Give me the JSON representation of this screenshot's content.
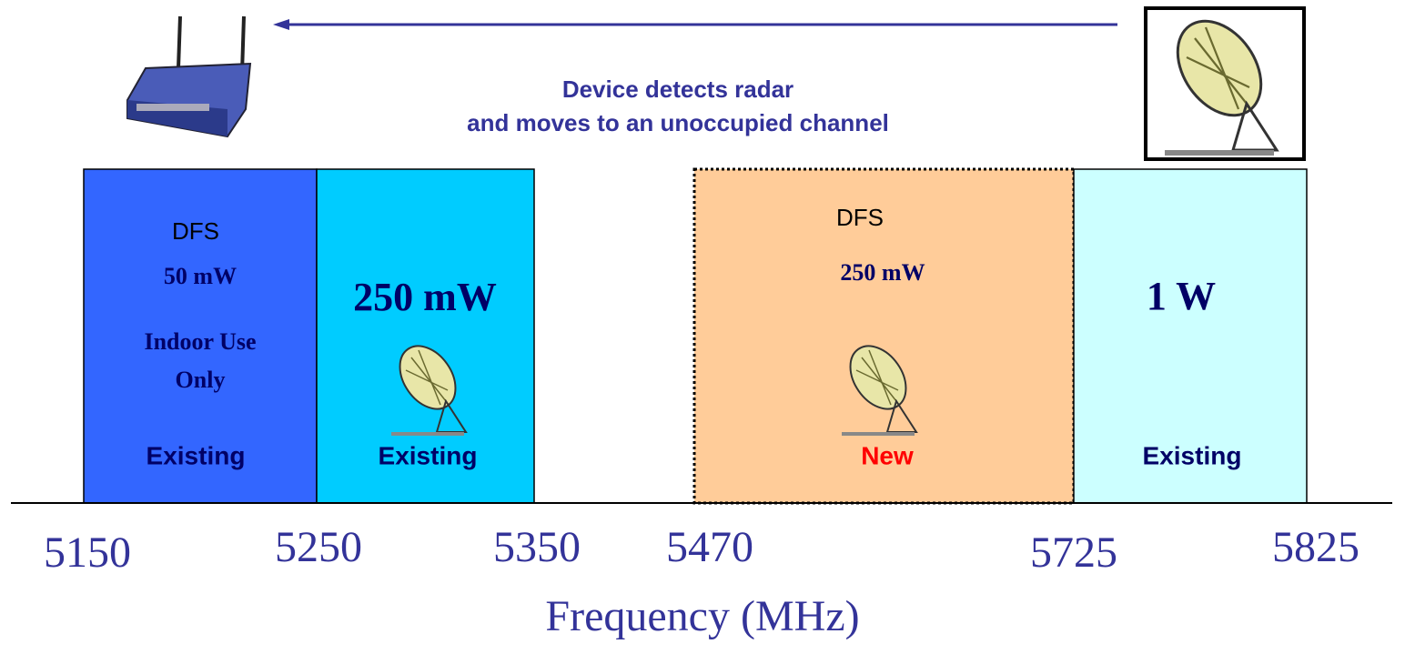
{
  "annotation": {
    "lines": [
      "Device detects radar",
      "and moves to an unoccupied channel"
    ]
  },
  "bands": [
    {
      "label": "DFS",
      "power": "50 mW",
      "note": [
        "Indoor Use",
        "Only"
      ],
      "status": "Existing"
    },
    {
      "power": "250 mW",
      "status": "Existing"
    },
    {
      "label": "DFS",
      "power": "250 mW",
      "status": "New"
    },
    {
      "power": "1 W",
      "status": "Existing"
    }
  ],
  "axis": {
    "ticks": [
      5150,
      5250,
      5350,
      5470,
      5725,
      5825
    ],
    "title": "Frequency (MHz)"
  }
}
